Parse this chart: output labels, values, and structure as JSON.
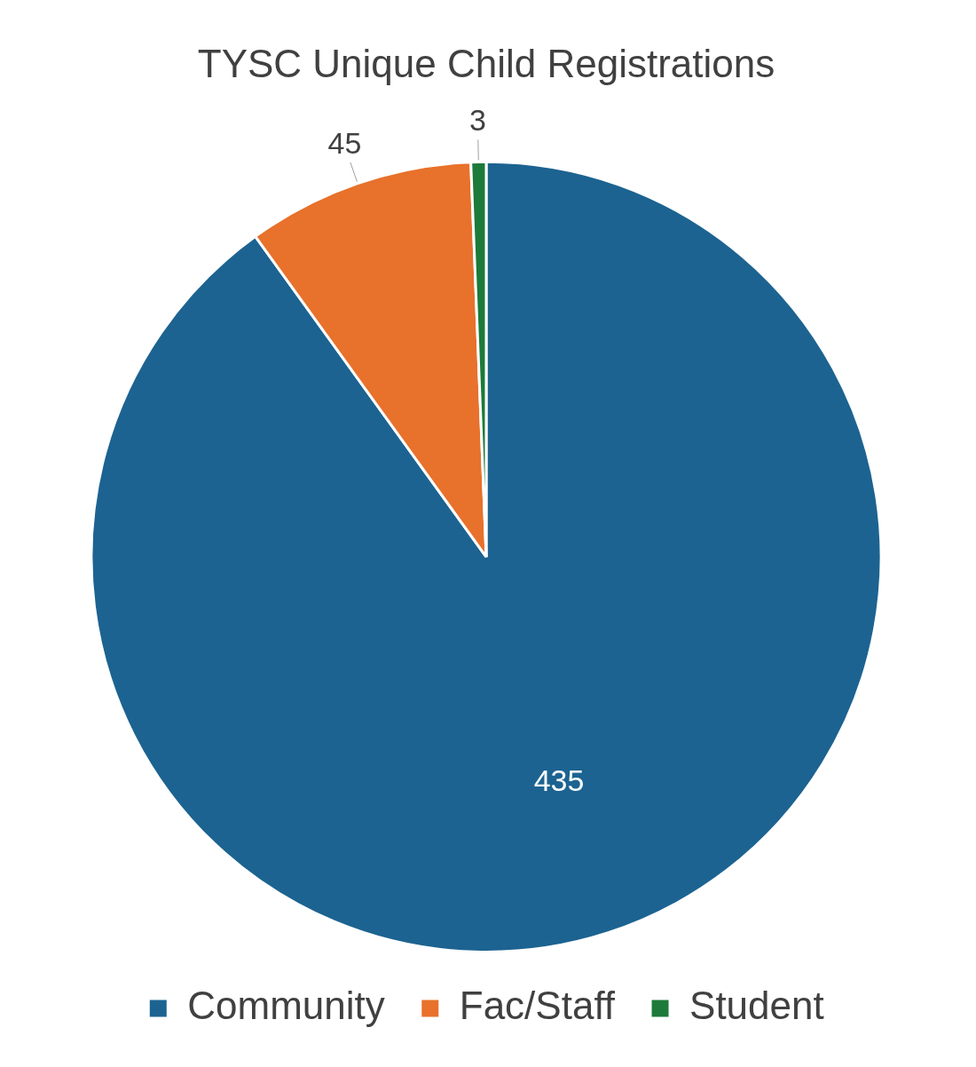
{
  "chart_data": {
    "type": "pie",
    "title": "TYSC Unique Child Registrations",
    "categories": [
      "Community",
      "Fac/Staff",
      "Student"
    ],
    "values": [
      435,
      45,
      3
    ],
    "colors": [
      "#1c6391",
      "#e8712b",
      "#1c7a3a"
    ],
    "data_labels": true,
    "legend": "bottom"
  }
}
